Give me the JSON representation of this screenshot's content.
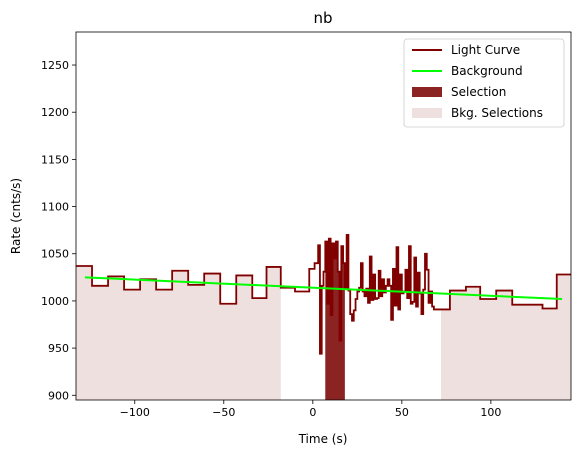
{
  "chart_data": {
    "type": "line",
    "title": "nb",
    "xlabel": "Time (s)",
    "ylabel": "Rate (cnts/s)",
    "xlim": [
      -133,
      145
    ],
    "ylim": [
      895,
      1285
    ],
    "xticks": [
      -100,
      -50,
      0,
      50,
      100
    ],
    "xtick_labels": [
      "−100",
      "−50",
      "0",
      "50",
      "100"
    ],
    "yticks": [
      900,
      950,
      1000,
      1050,
      1100,
      1150,
      1200,
      1250
    ],
    "ytick_labels": [
      "900",
      "950",
      "1000",
      "1050",
      "1100",
      "1150",
      "1200",
      "1250"
    ],
    "grid": false,
    "legend_position": "top-right",
    "legend": [
      {
        "label": "Light Curve",
        "kind": "line",
        "color": "#800000"
      },
      {
        "label": "Background",
        "kind": "line",
        "color": "#00ff00"
      },
      {
        "label": "Selection",
        "kind": "patch",
        "color": "#8b2323"
      },
      {
        "label": "Bkg. Selections",
        "kind": "patch",
        "color": "#efe0e0"
      }
    ],
    "light_curve": {
      "name": "Light Curve",
      "color": "#800000",
      "bins": [
        [
          -133,
          -124,
          1037
        ],
        [
          -124,
          -115,
          1016
        ],
        [
          -115,
          -106,
          1026
        ],
        [
          -106,
          -97,
          1012
        ],
        [
          -97,
          -88,
          1023
        ],
        [
          -88,
          -79,
          1012
        ],
        [
          -79,
          -70,
          1032
        ],
        [
          -70,
          -61,
          1017
        ],
        [
          -61,
          -52,
          1029
        ],
        [
          -52,
          -43,
          997
        ],
        [
          -43,
          -34,
          1027
        ],
        [
          -34,
          -26,
          1003
        ],
        [
          -26,
          -18,
          1036
        ],
        [
          -18,
          -10,
          1014
        ],
        [
          -10,
          -2,
          1010
        ],
        [
          -2,
          1,
          1034
        ],
        [
          1,
          3,
          1040
        ],
        [
          3,
          4,
          1059
        ],
        [
          4,
          5,
          944
        ],
        [
          5,
          6,
          1016
        ],
        [
          6,
          7,
          1031
        ],
        [
          7,
          8,
          1063
        ],
        [
          8,
          9,
          997
        ],
        [
          9,
          10,
          1066
        ],
        [
          10,
          11,
          985
        ],
        [
          11,
          12,
          1061
        ],
        [
          12,
          13,
          1045
        ],
        [
          13,
          14,
          1063
        ],
        [
          14,
          15,
          1031
        ],
        [
          15,
          16,
          958
        ],
        [
          16,
          17,
          1058
        ],
        [
          17,
          18,
          1040
        ],
        [
          18,
          19,
          1013
        ],
        [
          19,
          20,
          1070
        ],
        [
          20,
          21,
          1011
        ],
        [
          21,
          22,
          986
        ],
        [
          22,
          23,
          979
        ],
        [
          23,
          24,
          990
        ],
        [
          24,
          25,
          1002
        ],
        [
          25,
          26,
          1010
        ],
        [
          26,
          27,
          1014
        ],
        [
          27,
          28,
          1040
        ],
        [
          28,
          29,
          1010
        ],
        [
          29,
          30,
          1005
        ],
        [
          30,
          31,
          1013
        ],
        [
          31,
          32,
          998
        ],
        [
          32,
          33,
          1047
        ],
        [
          33,
          34,
          1001
        ],
        [
          34,
          35,
          1028
        ],
        [
          35,
          36,
          1002
        ],
        [
          36,
          37,
          1003
        ],
        [
          37,
          38,
          1032
        ],
        [
          38,
          39,
          1005
        ],
        [
          39,
          40,
          1023
        ],
        [
          40,
          41,
          1009
        ],
        [
          41,
          42,
          1016
        ],
        [
          42,
          43,
          1023
        ],
        [
          43,
          44,
          1016
        ],
        [
          44,
          45,
          980
        ],
        [
          45,
          46,
          1034
        ],
        [
          46,
          47,
          995
        ],
        [
          47,
          48,
          1057
        ],
        [
          48,
          49,
          991
        ],
        [
          49,
          50,
          1028
        ],
        [
          50,
          51,
          1008
        ],
        [
          51,
          52,
          1010
        ],
        [
          52,
          53,
          1033
        ],
        [
          53,
          54,
          1003
        ],
        [
          54,
          55,
          1058
        ],
        [
          55,
          56,
          997
        ],
        [
          56,
          57,
          999
        ],
        [
          57,
          58,
          1046
        ],
        [
          58,
          59,
          994
        ],
        [
          59,
          60,
          1030
        ],
        [
          60,
          61,
          1008
        ],
        [
          61,
          62,
          986
        ],
        [
          62,
          63,
          1012
        ],
        [
          63,
          64,
          1050
        ],
        [
          64,
          65,
          1033
        ],
        [
          65,
          66,
          998
        ],
        [
          66,
          67,
          1010
        ],
        [
          67,
          68,
          994
        ],
        [
          68,
          77,
          991
        ],
        [
          77,
          86,
          1011
        ],
        [
          86,
          94,
          1015
        ],
        [
          94,
          103,
          1002
        ],
        [
          103,
          112,
          1011
        ],
        [
          112,
          120,
          996
        ],
        [
          120,
          129,
          996
        ],
        [
          129,
          137,
          992
        ],
        [
          137,
          145,
          1028
        ]
      ]
    },
    "background": {
      "name": "Background",
      "color": "#00ff00",
      "x": [
        -128,
        140
      ],
      "y": [
        1025,
        1002
      ]
    },
    "selection": {
      "name": "Selection",
      "color": "#8b2323",
      "x_range": [
        7,
        18
      ]
    },
    "bkg_selections": {
      "name": "Bkg. Selections",
      "color": "#efe0e0",
      "ranges": [
        [
          -133,
          -18
        ],
        [
          72,
          145
        ]
      ]
    }
  }
}
